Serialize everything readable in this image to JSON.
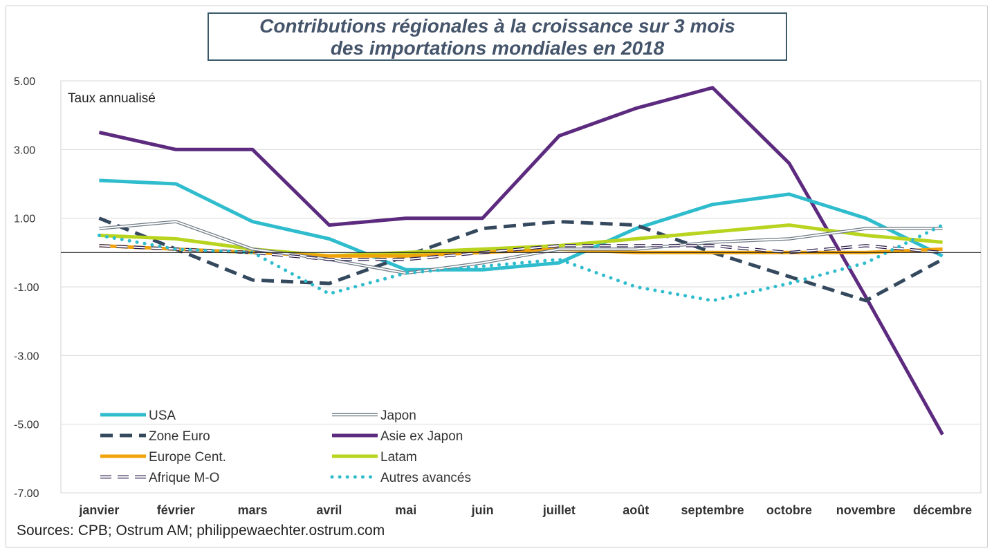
{
  "title_line1": "Contributions régionales à la croissance sur 3 mois",
  "title_line2": "des importations mondiales en 2018",
  "source": "Sources: CPB; Ostrum AM;  philippewaechter.ostrum.com",
  "chart_data": {
    "type": "line",
    "title": "Contributions régionales à la croissance sur 3 mois des importations mondiales en 2018",
    "unit_label": "Taux annualisé",
    "categories": [
      "janvier",
      "février",
      "mars",
      "avril",
      "mai",
      "juin",
      "juillet",
      "août",
      "septembre",
      "octobre",
      "novembre",
      "décembre"
    ],
    "ylim": [
      -7,
      5
    ],
    "yticks": [
      5,
      3,
      1,
      -1,
      -3,
      -5,
      -7
    ],
    "ytick_labels": [
      "5.00",
      "3.00",
      "1.00",
      "-1.00",
      "-3.00",
      "-5.00",
      "-7.00"
    ],
    "grid": true,
    "legend_placement": "bottom-left",
    "series": [
      {
        "name": "USA",
        "style": "solid",
        "color": "#2fbccd",
        "values": [
          2.1,
          2.0,
          0.9,
          0.4,
          -0.5,
          -0.5,
          -0.3,
          0.7,
          1.4,
          1.7,
          1.0,
          -0.1
        ]
      },
      {
        "name": "Japon",
        "style": "double",
        "color": "#6e7a84",
        "values": [
          0.7,
          0.9,
          0.1,
          -0.2,
          -0.6,
          -0.3,
          0.1,
          0.1,
          0.3,
          0.4,
          0.7,
          0.7
        ]
      },
      {
        "name": "Zone Euro",
        "style": "dashed",
        "color": "#34495e",
        "values": [
          1.0,
          0.1,
          -0.8,
          -0.9,
          -0.1,
          0.7,
          0.9,
          0.8,
          0.0,
          -0.7,
          -1.4,
          -0.2
        ]
      },
      {
        "name": "Asie ex Japon",
        "style": "solid",
        "color": "#5c2a7e",
        "values": [
          3.5,
          3.0,
          3.0,
          0.8,
          1.0,
          1.0,
          3.4,
          4.2,
          4.8,
          2.6,
          -1.3,
          -5.3
        ]
      },
      {
        "name": "Europe Cent.",
        "style": "solid",
        "color": "#f0a30a",
        "values": [
          0.2,
          0.1,
          0.0,
          -0.1,
          -0.1,
          0.0,
          0.1,
          0.0,
          0.0,
          0.0,
          0.0,
          0.1
        ]
      },
      {
        "name": "Latam",
        "style": "solid",
        "color": "#b9d41f",
        "values": [
          0.5,
          0.4,
          0.1,
          -0.1,
          0.0,
          0.1,
          0.2,
          0.4,
          0.6,
          0.8,
          0.5,
          0.3
        ]
      },
      {
        "name": "Afrique M-O",
        "style": "dashed-double",
        "color": "#2e1f4d",
        "values": [
          0.2,
          0.1,
          0.0,
          -0.2,
          -0.2,
          0.0,
          0.2,
          0.2,
          0.2,
          0.0,
          0.2,
          0.0
        ]
      },
      {
        "name": "Autres avancés",
        "style": "dotted",
        "color": "#2fbccd",
        "values": [
          0.5,
          0.1,
          0.0,
          -1.2,
          -0.6,
          -0.4,
          -0.2,
          -1.0,
          -1.4,
          -0.9,
          -0.3,
          0.8
        ]
      }
    ]
  }
}
